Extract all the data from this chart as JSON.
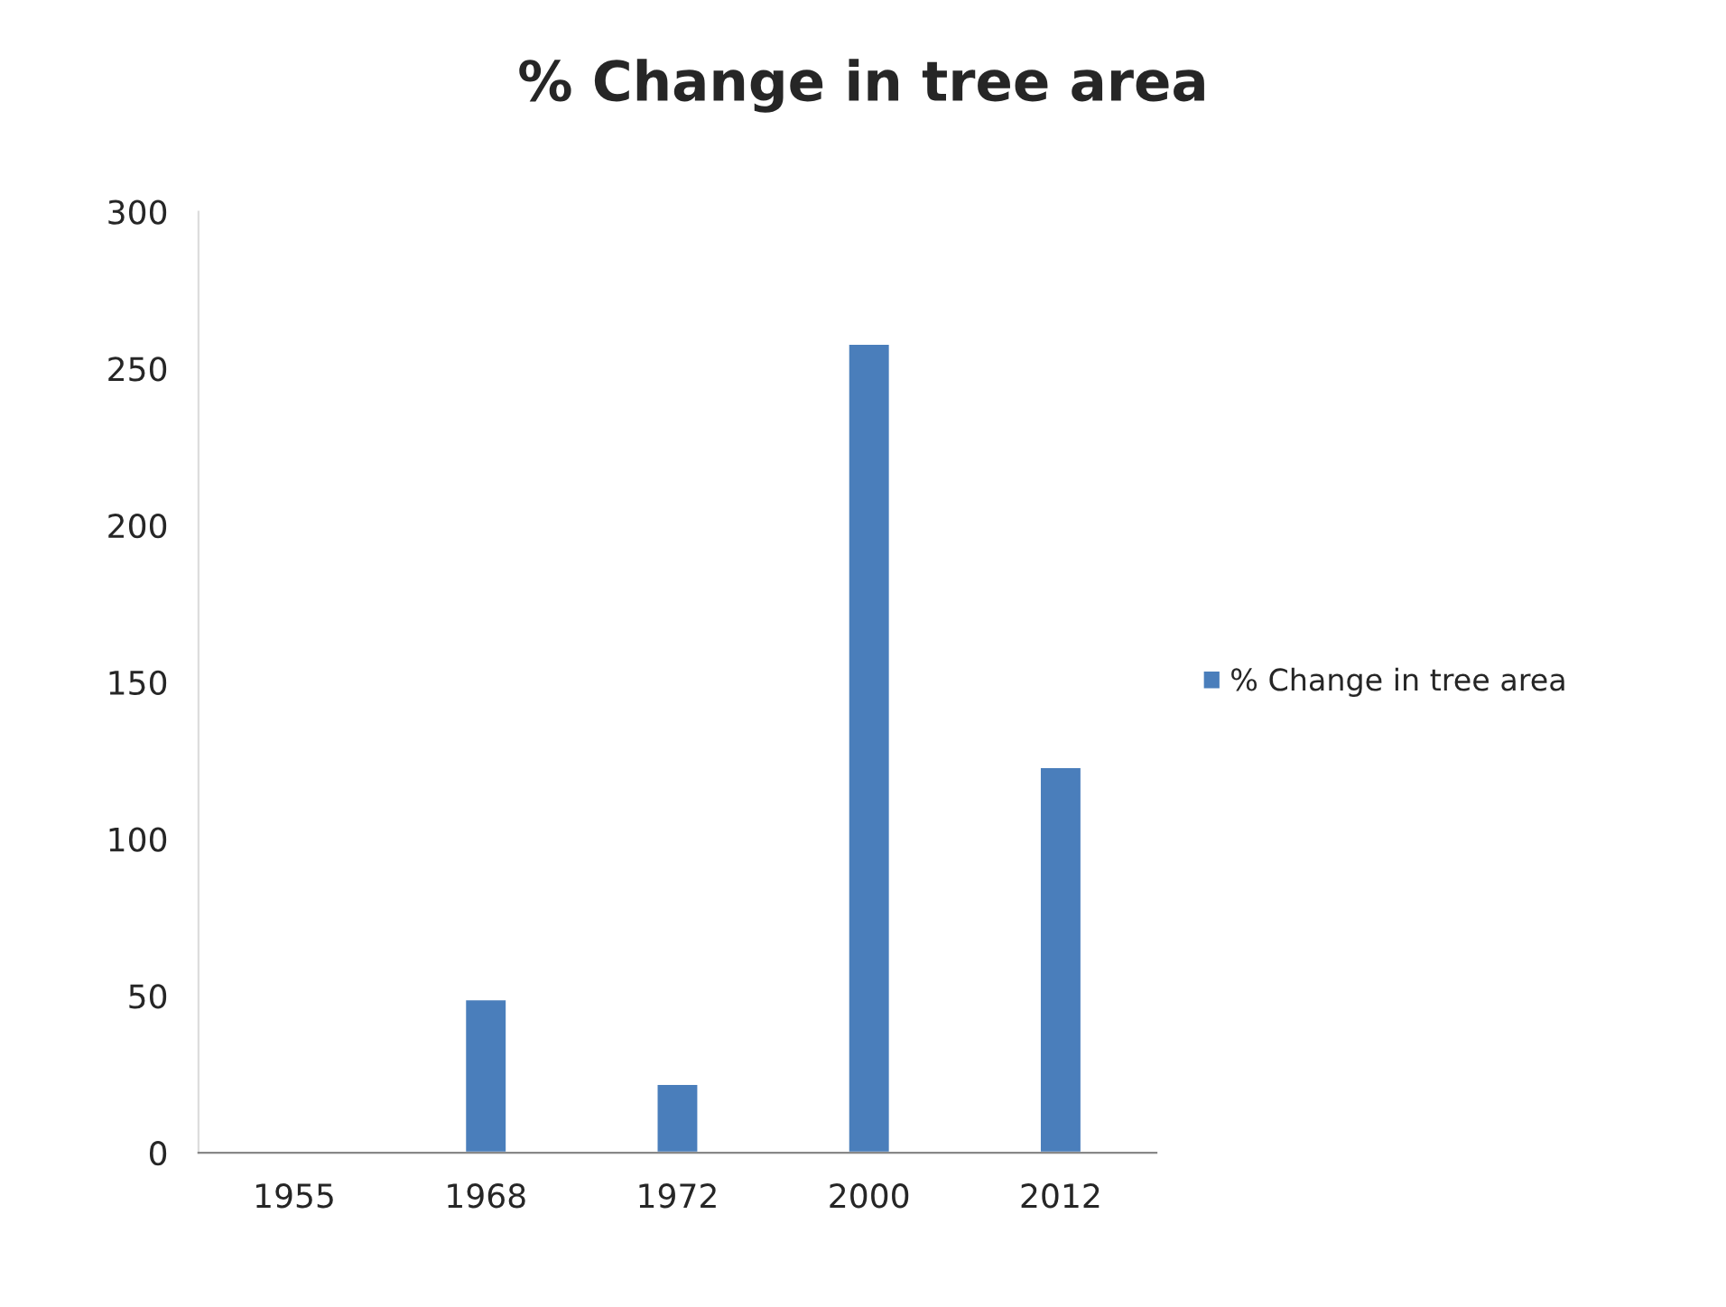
{
  "chart_data": {
    "type": "bar",
    "title": "% Change in tree area",
    "categories": [
      "1955",
      "1968",
      "1972",
      "2000",
      "2012"
    ],
    "series": [
      {
        "name": "% Change in tree area",
        "color": "#4a7ebb",
        "values": [
          null,
          49,
          22,
          258,
          123
        ]
      }
    ],
    "ylim": [
      0,
      300
    ],
    "yticks": [
      0,
      50,
      100,
      150,
      200,
      250,
      300
    ],
    "legend": "right",
    "grid": false
  }
}
